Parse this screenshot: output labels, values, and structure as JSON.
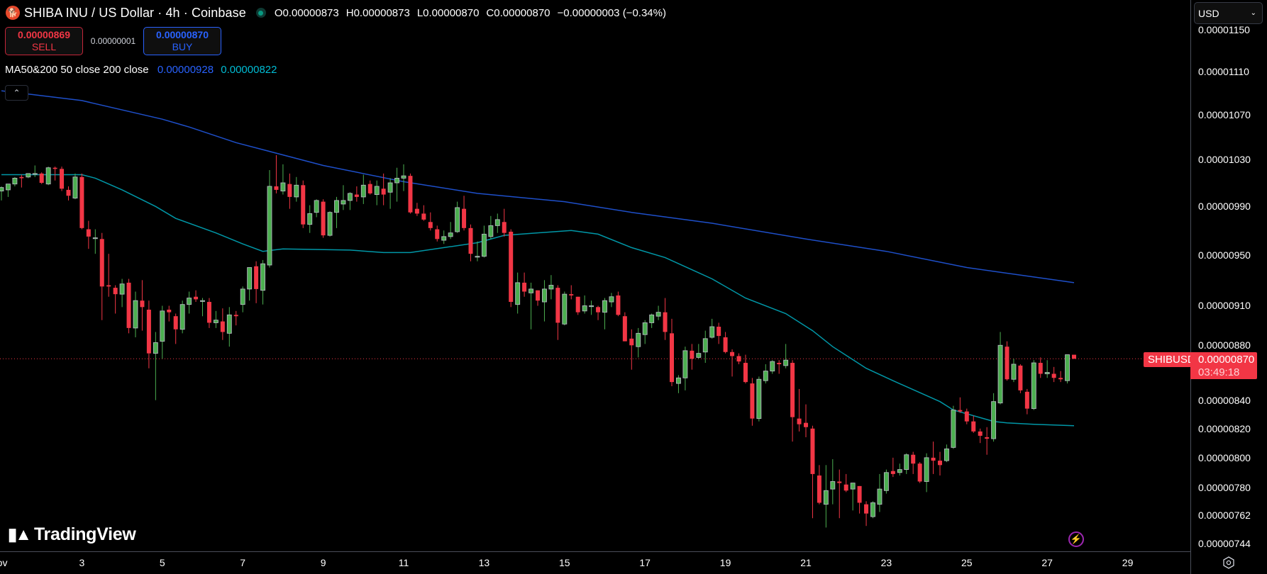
{
  "header": {
    "symbol_icon": "shiba-inu-logo",
    "title": "SHIBA INU / US Dollar · 4h · Coinbase",
    "ohlc": {
      "o_label": "O",
      "o": "0.00000873",
      "h_label": "H",
      "h": "0.00000873",
      "l_label": "L",
      "l": "0.00000870",
      "c_label": "C",
      "c": "0.00000870",
      "change": "−0.00000003 (−0.34%)"
    }
  },
  "trade": {
    "sell_price": "0.00000869",
    "sell_label": "SELL",
    "spread": "0.00000001",
    "buy_price": "0.00000870",
    "buy_label": "BUY"
  },
  "indicator": {
    "name": "MA50&200 50 close 200 close",
    "value1": "0.00000928",
    "value2": "0.00000822"
  },
  "currency_select": {
    "value": "USD"
  },
  "price_tag": {
    "symbol": "SHIBUSD",
    "price": "0.00000870",
    "countdown": "03:49:18"
  },
  "branding": {
    "logo_text": "TradingView"
  },
  "colors": {
    "up": "#4caf50",
    "down": "#f23645",
    "ma_slow": "#1e4fc9",
    "ma_fast": "#0097a7",
    "background": "#000000"
  },
  "chart_data": {
    "type": "candlestick",
    "title": "SHIBA INU / US Dollar · 4h · Coinbase",
    "interval": "4h",
    "price_unit": "1e-8 USD",
    "y_scale": "log",
    "ylim": [
      744,
      1150
    ],
    "y_ticks": [
      "0.00001150",
      "0.00001110",
      "0.00001070",
      "0.00001030",
      "0.00000990",
      "0.00000950",
      "0.00000910",
      "0.00000880",
      "0.00000840",
      "0.00000820",
      "0.00000800",
      "0.00000780",
      "0.00000762",
      "0.00000744"
    ],
    "y_tick_values": [
      1150,
      1110,
      1070,
      1030,
      990,
      950,
      910,
      880,
      840,
      820,
      800,
      780,
      762,
      744
    ],
    "x_ticks": [
      {
        "label": "Nov",
        "candle": 0
      },
      {
        "label": "3",
        "candle": 12
      },
      {
        "label": "5",
        "candle": 24
      },
      {
        "label": "7",
        "candle": 36
      },
      {
        "label": "9",
        "candle": 48
      },
      {
        "label": "11",
        "candle": 60
      },
      {
        "label": "13",
        "candle": 72
      },
      {
        "label": "15",
        "candle": 84
      },
      {
        "label": "17",
        "candle": 96
      },
      {
        "label": "19",
        "candle": 108
      },
      {
        "label": "21",
        "candle": 120
      },
      {
        "label": "23",
        "candle": 132
      },
      {
        "label": "25",
        "candle": 144
      },
      {
        "label": "27",
        "candle": 156
      },
      {
        "label": "29",
        "candle": 168
      }
    ],
    "ohlc_fields": [
      "open",
      "high",
      "low",
      "close"
    ],
    "candles": [
      [
        1003,
        1007,
        995,
        1006
      ],
      [
        1004,
        1009,
        998,
        1009
      ],
      [
        1009,
        1015,
        1007,
        1014
      ],
      [
        1015,
        1017,
        1006,
        1014
      ],
      [
        1015,
        1018,
        1014,
        1018
      ],
      [
        1018,
        1025,
        1015,
        1018
      ],
      [
        1018,
        1019,
        1009,
        1010
      ],
      [
        1009,
        1024,
        1008,
        1023
      ],
      [
        1023,
        1024,
        1012,
        1022
      ],
      [
        1022,
        1024,
        1003,
        1005
      ],
      [
        1004,
        1007,
        995,
        999
      ],
      [
        997,
        1018,
        996,
        1015
      ],
      [
        1015,
        1018,
        971,
        972
      ],
      [
        971,
        978,
        955,
        965
      ],
      [
        964,
        971,
        951,
        964
      ],
      [
        963,
        968,
        899,
        925
      ],
      [
        926,
        951,
        917,
        925
      ],
      [
        924,
        926,
        904,
        919
      ],
      [
        919,
        931,
        909,
        927
      ],
      [
        928,
        931,
        889,
        893
      ],
      [
        893,
        921,
        886,
        914
      ],
      [
        914,
        930,
        891,
        909
      ],
      [
        907,
        914,
        863,
        874
      ],
      [
        874,
        890,
        840,
        882
      ],
      [
        883,
        910,
        870,
        906
      ],
      [
        907,
        910,
        898,
        905
      ],
      [
        902,
        904,
        881,
        892
      ],
      [
        892,
        914,
        889,
        911
      ],
      [
        911,
        921,
        904,
        916
      ],
      [
        917,
        922,
        913,
        915
      ],
      [
        914,
        916,
        902,
        914
      ],
      [
        913,
        916,
        893,
        897
      ],
      [
        897,
        906,
        893,
        899
      ],
      [
        898,
        908,
        884,
        890
      ],
      [
        889,
        909,
        879,
        903
      ],
      [
        903,
        906,
        895,
        902
      ],
      [
        911,
        925,
        905,
        923
      ],
      [
        923,
        940,
        914,
        940
      ],
      [
        941,
        945,
        912,
        923
      ],
      [
        922,
        946,
        911,
        943
      ],
      [
        942,
        1021,
        940,
        1007
      ],
      [
        1007,
        1034,
        1001,
        1004
      ],
      [
        1003,
        1026,
        1000,
        1010
      ],
      [
        1009,
        1018,
        988,
        998
      ],
      [
        998,
        1015,
        994,
        1008
      ],
      [
        1008,
        1012,
        972,
        975
      ],
      [
        975,
        991,
        968,
        984
      ],
      [
        985,
        996,
        981,
        995
      ],
      [
        994,
        996,
        964,
        966
      ],
      [
        966,
        986,
        965,
        985
      ],
      [
        985,
        998,
        972,
        995
      ],
      [
        992,
        1008,
        987,
        995
      ],
      [
        995,
        1002,
        987,
        1001
      ],
      [
        1000,
        1007,
        994,
        998
      ],
      [
        998,
        1017,
        992,
        1008
      ],
      [
        1009,
        1012,
        1000,
        1001
      ],
      [
        1000,
        1012,
        991,
        1007
      ],
      [
        1005,
        1018,
        991,
        1000
      ],
      [
        1002,
        1014,
        988,
        1010
      ],
      [
        1010,
        1023,
        994,
        1014
      ],
      [
        1014,
        1026,
        1003,
        1016
      ],
      [
        1016,
        1018,
        984,
        985
      ],
      [
        988,
        993,
        982,
        984
      ],
      [
        984,
        991,
        978,
        979
      ],
      [
        977,
        985,
        970,
        972
      ],
      [
        971,
        974,
        961,
        963
      ],
      [
        962,
        970,
        959,
        965
      ],
      [
        965,
        977,
        963,
        968
      ],
      [
        969,
        994,
        968,
        989
      ],
      [
        988,
        999,
        970,
        972
      ],
      [
        972,
        975,
        945,
        951
      ],
      [
        949,
        961,
        945,
        949
      ],
      [
        949,
        974,
        948,
        967
      ],
      [
        965,
        982,
        963,
        974
      ],
      [
        974,
        984,
        968,
        979
      ],
      [
        977,
        988,
        965,
        968
      ],
      [
        969,
        971,
        909,
        913
      ],
      [
        911,
        936,
        904,
        928
      ],
      [
        928,
        936,
        917,
        921
      ],
      [
        920,
        928,
        892,
        923
      ],
      [
        922,
        922,
        910,
        914
      ],
      [
        913,
        930,
        898,
        923
      ],
      [
        923,
        934,
        915,
        926
      ],
      [
        924,
        926,
        884,
        897
      ],
      [
        896,
        921,
        895,
        919
      ],
      [
        919,
        926,
        915,
        918
      ],
      [
        917,
        917,
        903,
        905
      ],
      [
        906,
        918,
        904,
        910
      ],
      [
        910,
        914,
        903,
        910
      ],
      [
        909,
        910,
        899,
        905
      ],
      [
        905,
        916,
        892,
        914
      ],
      [
        913,
        920,
        909,
        917
      ],
      [
        918,
        921,
        902,
        903
      ],
      [
        902,
        905,
        883,
        883
      ],
      [
        885,
        892,
        862,
        880
      ],
      [
        879,
        893,
        871,
        889
      ],
      [
        888,
        899,
        881,
        897
      ],
      [
        897,
        904,
        893,
        903
      ],
      [
        902,
        910,
        899,
        905
      ],
      [
        905,
        916,
        884,
        890
      ],
      [
        889,
        900,
        850,
        853
      ],
      [
        852,
        858,
        845,
        856
      ],
      [
        856,
        879,
        847,
        876
      ],
      [
        876,
        881,
        862,
        870
      ],
      [
        871,
        881,
        870,
        874
      ],
      [
        875,
        891,
        867,
        885
      ],
      [
        886,
        900,
        885,
        894
      ],
      [
        894,
        897,
        881,
        887
      ],
      [
        886,
        890,
        874,
        875
      ],
      [
        875,
        877,
        857,
        872
      ],
      [
        872,
        874,
        866,
        868
      ],
      [
        867,
        873,
        852,
        853
      ],
      [
        852,
        856,
        822,
        827
      ],
      [
        827,
        857,
        825,
        855
      ],
      [
        854,
        866,
        852,
        861
      ],
      [
        861,
        869,
        859,
        868
      ],
      [
        867,
        869,
        859,
        866
      ],
      [
        865,
        881,
        863,
        869
      ],
      [
        867,
        869,
        811,
        828
      ],
      [
        827,
        848,
        818,
        823
      ],
      [
        824,
        837,
        814,
        821
      ],
      [
        820,
        822,
        760,
        789
      ],
      [
        788,
        795,
        769,
        770
      ],
      [
        769,
        795,
        754,
        778
      ],
      [
        779,
        799,
        769,
        784
      ],
      [
        784,
        792,
        760,
        783
      ],
      [
        782,
        789,
        777,
        778
      ],
      [
        779,
        783,
        765,
        783
      ],
      [
        781,
        781,
        763,
        770
      ],
      [
        769,
        771,
        755,
        763
      ],
      [
        761,
        771,
        760,
        770
      ],
      [
        769,
        789,
        764,
        779
      ],
      [
        778,
        792,
        776,
        790
      ],
      [
        791,
        800,
        787,
        789
      ],
      [
        790,
        796,
        788,
        792
      ],
      [
        792,
        803,
        789,
        802
      ],
      [
        802,
        804,
        789,
        796
      ],
      [
        796,
        797,
        783,
        784
      ],
      [
        784,
        803,
        777,
        800
      ],
      [
        800,
        811,
        789,
        798
      ],
      [
        798,
        804,
        788,
        795
      ],
      [
        798,
        809,
        797,
        806
      ],
      [
        807,
        836,
        806,
        833
      ],
      [
        833,
        842,
        831,
        832
      ],
      [
        832,
        834,
        823,
        825
      ],
      [
        825,
        829,
        817,
        818
      ],
      [
        818,
        820,
        810,
        815
      ],
      [
        814,
        821,
        802,
        813
      ],
      [
        813,
        845,
        811,
        839
      ],
      [
        838,
        890,
        837,
        880
      ],
      [
        879,
        883,
        854,
        855
      ],
      [
        855,
        870,
        853,
        866
      ],
      [
        865,
        866,
        845,
        847
      ],
      [
        846,
        848,
        830,
        834
      ],
      [
        834,
        869,
        833,
        867
      ],
      [
        867,
        871,
        856,
        859
      ],
      [
        859,
        869,
        856,
        860
      ],
      [
        859,
        864,
        853,
        856
      ],
      [
        856,
        861,
        853,
        855
      ],
      [
        854,
        873,
        852,
        873
      ],
      [
        873,
        873,
        870,
        870
      ]
    ],
    "series": [
      {
        "name": "MA200",
        "color": "#1e4fc9",
        "points": [
          [
            0,
            1092
          ],
          [
            12,
            1083
          ],
          [
            24,
            1066
          ],
          [
            28,
            1059
          ],
          [
            35,
            1045
          ],
          [
            48,
            1025
          ],
          [
            60,
            1011
          ],
          [
            71,
            1001
          ],
          [
            84,
            994
          ],
          [
            94,
            985
          ],
          [
            106,
            976
          ],
          [
            120,
            963
          ],
          [
            132,
            953
          ],
          [
            144,
            940
          ],
          [
            156,
            931
          ],
          [
            160,
            928
          ]
        ]
      },
      {
        "name": "MA50",
        "color": "#0097a7",
        "points": [
          [
            0,
            1017
          ],
          [
            12,
            1017
          ],
          [
            14,
            1014
          ],
          [
            18,
            1004
          ],
          [
            23,
            990
          ],
          [
            26,
            980
          ],
          [
            32,
            968
          ],
          [
            36,
            959
          ],
          [
            39,
            953
          ],
          [
            42,
            955
          ],
          [
            52,
            954
          ],
          [
            57,
            952
          ],
          [
            61,
            952
          ],
          [
            71,
            960
          ],
          [
            75,
            966
          ],
          [
            85,
            970
          ],
          [
            89,
            967
          ],
          [
            94,
            956
          ],
          [
            99,
            948
          ],
          [
            106,
            931
          ],
          [
            111,
            916
          ],
          [
            117,
            904
          ],
          [
            121,
            891
          ],
          [
            124,
            879
          ],
          [
            129,
            863
          ],
          [
            133,
            854
          ],
          [
            140,
            839
          ],
          [
            142,
            833
          ],
          [
            148,
            825
          ],
          [
            150,
            824
          ],
          [
            154,
            823
          ],
          [
            160,
            822
          ]
        ]
      }
    ],
    "last_price": 870,
    "grid": false,
    "legend": "top-left"
  }
}
